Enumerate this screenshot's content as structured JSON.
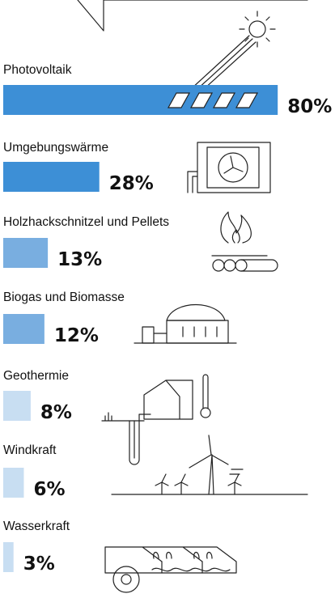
{
  "chart_data": {
    "type": "bar",
    "orientation": "horizontal",
    "categories": [
      "Photovoltaik",
      "Umgebungswärme",
      "Holzhackschnitzel und Pellets",
      "Biogas und Biomasse",
      "Geothermie",
      "Windkraft",
      "Wasserkraft"
    ],
    "values": [
      80,
      28,
      13,
      12,
      8,
      6,
      3
    ],
    "value_labels": [
      "80%",
      "28%",
      "13%",
      "12%",
      "8%",
      "6%",
      "3%"
    ],
    "colors": [
      "#3d8fd6",
      "#3d8fd6",
      "#79aee0",
      "#79aee0",
      "#c8def2",
      "#c8def2",
      "#c8def2"
    ]
  }
}
